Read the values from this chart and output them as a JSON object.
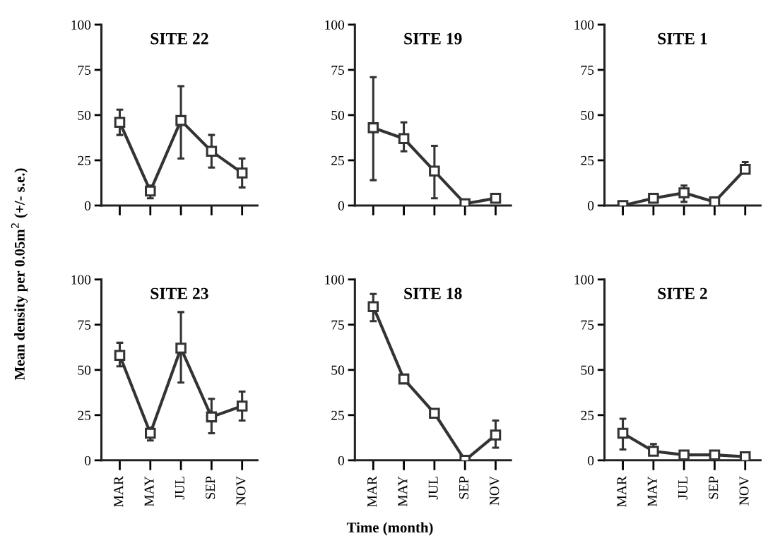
{
  "chart_data": [
    {
      "type": "line",
      "title": "SITE 22",
      "ylabel": "Mean density per 0.05m$^{2}$ (+/- s.e.)",
      "categories": [
        null,
        null,
        null,
        null,
        null
      ],
      "values": [
        46,
        8,
        47,
        30,
        18
      ],
      "errors": [
        [
          39,
          53
        ],
        [
          4,
          11
        ],
        [
          26,
          66
        ],
        [
          21,
          39
        ],
        [
          10,
          26
        ]
      ],
      "color": "#333333",
      "marker": "square",
      "ylim": [
        0,
        100
      ],
      "yticks": [
        0,
        25,
        50,
        75,
        100
      ],
      "tick_labels": "y"
    },
    {
      "type": "line",
      "title": "SITE 19",
      "categories": [
        null,
        null,
        null,
        null,
        null
      ],
      "values": [
        43,
        37,
        19,
        1,
        4
      ],
      "errors": [
        [
          14,
          71
        ],
        [
          30,
          46
        ],
        [
          4,
          33
        ],
        null,
        null
      ],
      "color": "#333333",
      "marker": "square",
      "ylim": [
        0,
        100
      ],
      "yticks": [
        0,
        25,
        50,
        75,
        100
      ],
      "tick_labels": "y"
    },
    {
      "type": "line",
      "title": "SITE 1",
      "categories": [
        null,
        null,
        null,
        null,
        null
      ],
      "values": [
        0,
        4,
        7,
        2,
        20
      ],
      "errors": [
        null,
        null,
        [
          2,
          11
        ],
        null,
        [
          18,
          24
        ]
      ],
      "color": "#333333",
      "marker": "square",
      "ylim": [
        0,
        100
      ],
      "yticks": [
        0,
        25,
        50,
        75,
        100
      ],
      "tick_labels": "y"
    },
    {
      "type": "line",
      "title": "SITE 23",
      "categories": [
        "MAR",
        "MAY",
        "JUL",
        "SEP",
        "NOV"
      ],
      "values": [
        58,
        15,
        62,
        24,
        30
      ],
      "errors": [
        [
          52,
          65
        ],
        [
          11,
          18
        ],
        [
          43,
          82
        ],
        [
          15,
          34
        ],
        [
          22,
          38
        ]
      ],
      "color": "#333333",
      "marker": "square",
      "ylim": [
        0,
        100
      ],
      "yticks": [
        0,
        25,
        50,
        75,
        100
      ]
    },
    {
      "type": "line",
      "title": "SITE 18",
      "xlabel": "Time (month)",
      "categories": [
        "MAR",
        "MAY",
        "JUL",
        "SEP",
        "NOV"
      ],
      "values": [
        85,
        45,
        26,
        0,
        14
      ],
      "errors": [
        [
          77,
          92
        ],
        null,
        [
          24,
          28
        ],
        null,
        [
          7,
          22
        ]
      ],
      "color": "#333333",
      "marker": "square",
      "ylim": [
        0,
        100
      ],
      "yticks": [
        0,
        25,
        50,
        75,
        100
      ]
    },
    {
      "type": "line",
      "title": "SITE 2",
      "categories": [
        "MAR",
        "MAY",
        "JUL",
        "SEP",
        "NOV"
      ],
      "values": [
        15,
        5,
        3,
        3,
        2
      ],
      "errors": [
        [
          6,
          23
        ],
        [
          3,
          9
        ],
        null,
        null,
        null
      ],
      "color": "#333333",
      "marker": "square",
      "ylim": [
        0,
        100
      ],
      "yticks": [
        0,
        25,
        50,
        75,
        100
      ]
    }
  ]
}
